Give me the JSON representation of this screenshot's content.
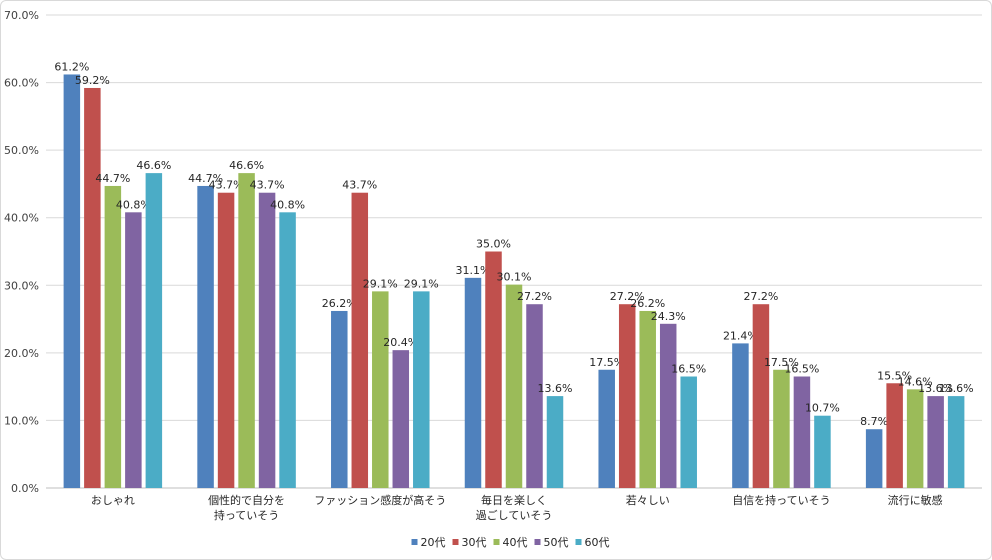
{
  "chart_data": {
    "type": "bar",
    "title": "",
    "xlabel": "",
    "ylabel": "",
    "ylim": [
      0,
      70
    ],
    "ytick_step": 10,
    "ytick_labels": [
      "0.0%",
      "10.0%",
      "20.0%",
      "30.0%",
      "40.0%",
      "50.0%",
      "60.0%",
      "70.0%"
    ],
    "grid": true,
    "legend_position": "bottom",
    "categories": [
      [
        "おしゃれ"
      ],
      [
        "個性的で自分を",
        "持っていそう"
      ],
      [
        "ファッション感度が高そう"
      ],
      [
        "毎日を楽しく",
        "過ごしていそう"
      ],
      [
        "若々しい"
      ],
      [
        "自信を持っていそう"
      ],
      [
        "流行に敏感"
      ]
    ],
    "series": [
      {
        "name": "20代",
        "color": "#4f81bd",
        "values": [
          61.2,
          44.7,
          26.2,
          31.1,
          17.5,
          21.4,
          8.7
        ],
        "labels": [
          "61.2%",
          "44.7%",
          "26.2%",
          "31.1%",
          "17.5%",
          "21.4%",
          "8.7%"
        ]
      },
      {
        "name": "30代",
        "color": "#c0504d",
        "values": [
          59.2,
          43.7,
          43.7,
          35.0,
          27.2,
          27.2,
          15.5
        ],
        "labels": [
          "59.2%",
          "43.7%",
          "43.7%",
          "35.0%",
          "27.2%",
          "27.2%",
          "15.5%"
        ]
      },
      {
        "name": "40代",
        "color": "#9bbb59",
        "values": [
          44.7,
          46.6,
          29.1,
          30.1,
          26.2,
          17.5,
          14.6
        ],
        "labels": [
          "44.7%",
          "46.6%",
          "29.1%",
          "30.1%",
          "26.2%",
          "17.5%",
          "14.6%"
        ]
      },
      {
        "name": "50代",
        "color": "#8064a2",
        "values": [
          40.8,
          43.7,
          20.4,
          27.2,
          24.3,
          16.5,
          13.6
        ],
        "labels": [
          "40.8%",
          "43.7%",
          "20.4%",
          "27.2%",
          "24.3%",
          "16.5%",
          "13.6%"
        ]
      },
      {
        "name": "60代",
        "color": "#4bacc6",
        "values": [
          46.6,
          40.8,
          29.1,
          13.6,
          16.5,
          10.7,
          13.6
        ],
        "labels": [
          "46.6%",
          "40.8%",
          "29.1%",
          "13.6%",
          "16.5%",
          "10.7%",
          "13.6%"
        ]
      }
    ]
  }
}
